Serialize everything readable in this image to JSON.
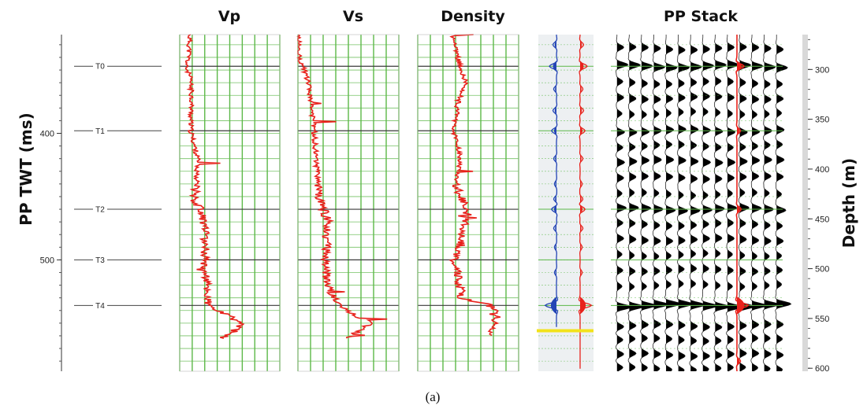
{
  "chart_data": {
    "type": "line",
    "panel_titles": [
      "Vp",
      "Vs",
      "Density",
      "PP Stack"
    ],
    "left_axis": {
      "label": "PP TWT (ms)",
      "ticks": [
        400,
        500
      ],
      "range": [
        322,
        588
      ]
    },
    "right_axis": {
      "label": "Depth (m)",
      "ticks": [
        300,
        350,
        400,
        450,
        500,
        550,
        600
      ],
      "range": [
        265,
        603
      ]
    },
    "horizons": [
      {
        "name": "T0",
        "twt": 347
      },
      {
        "name": "T1",
        "twt": 398
      },
      {
        "name": "T2",
        "twt": 460
      },
      {
        "name": "T3",
        "twt": 500
      },
      {
        "name": "T4",
        "twt": 536
      }
    ],
    "series_colors": {
      "log": "#e8221c",
      "grid": "#5cb848",
      "synthetic": "#2445b5",
      "stack_fill": "#000000",
      "marker": "#f2e21a"
    },
    "logs": {
      "Vp": {
        "twt": [
          322,
          340,
          347,
          355,
          370,
          390,
          398,
          420,
          440,
          455,
          460,
          470,
          490,
          500,
          520,
          536,
          543,
          550,
          556,
          562
        ],
        "value": [
          0.1,
          0.09,
          0.06,
          0.1,
          0.12,
          0.11,
          0.11,
          0.18,
          0.17,
          0.15,
          0.22,
          0.24,
          0.26,
          0.25,
          0.27,
          0.28,
          0.45,
          0.62,
          0.55,
          0.4
        ]
      },
      "Vs": {
        "twt": [
          322,
          340,
          347,
          360,
          380,
          398,
          420,
          440,
          455,
          460,
          470,
          490,
          500,
          520,
          536,
          543,
          550,
          556,
          562
        ],
        "value": [
          0.01,
          0.01,
          0.05,
          0.1,
          0.14,
          0.16,
          0.18,
          0.2,
          0.22,
          0.25,
          0.3,
          0.28,
          0.26,
          0.3,
          0.4,
          0.55,
          0.72,
          0.6,
          0.5
        ]
      },
      "Density": {
        "twt": [
          322,
          335,
          347,
          360,
          375,
          398,
          420,
          440,
          455,
          460,
          475,
          490,
          500,
          515,
          530,
          536,
          545,
          555,
          560
        ],
        "value": [
          0.35,
          0.38,
          0.42,
          0.48,
          0.4,
          0.36,
          0.42,
          0.38,
          0.45,
          0.5,
          0.46,
          0.42,
          0.36,
          0.4,
          0.44,
          0.72,
          0.78,
          0.74,
          0.7
        ]
      }
    },
    "caption": "(a)"
  }
}
